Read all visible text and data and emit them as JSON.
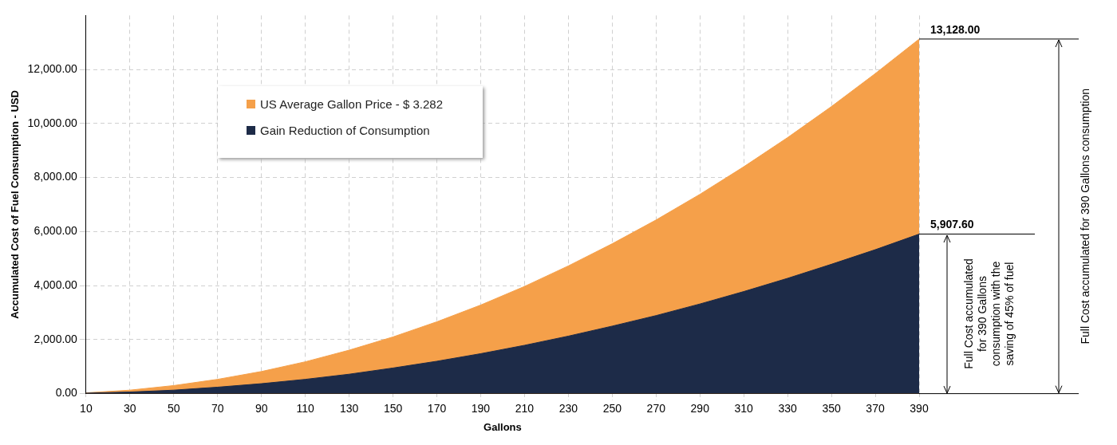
{
  "chart_data": {
    "type": "area",
    "xlabel": "Gallons",
    "ylabel": "Accumulated Cost of Fuel Consumption - USD",
    "categories": [
      "10",
      "30",
      "50",
      "70",
      "90",
      "110",
      "130",
      "150",
      "170",
      "190",
      "210",
      "230",
      "250",
      "270",
      "290",
      "310",
      "330",
      "350",
      "370",
      "390"
    ],
    "series": [
      {
        "name": "US Average Gallon Price - $ 3.282",
        "color": "#f5a04a",
        "values": [
          30,
          130,
          300,
          530,
          820,
          1180,
          1610,
          2100,
          2660,
          3280,
          3970,
          4730,
          5550,
          6430,
          7380,
          8400,
          9480,
          10630,
          11850,
          13128
        ],
        "value_labels": [
          null,
          null,
          null,
          null,
          null,
          null,
          null,
          null,
          null,
          null,
          null,
          null,
          null,
          null,
          null,
          null,
          null,
          null,
          null,
          "13,128.00"
        ]
      },
      {
        "name": "Gain Reduction of Consumption",
        "color": "#1d2b48",
        "values": [
          20,
          60,
          130,
          240,
          370,
          530,
          720,
          950,
          1200,
          1480,
          1790,
          2130,
          2500,
          2890,
          3320,
          3780,
          4270,
          4790,
          5330,
          5907.6
        ],
        "value_labels": [
          null,
          null,
          null,
          null,
          null,
          null,
          null,
          null,
          null,
          null,
          null,
          null,
          null,
          null,
          null,
          null,
          null,
          null,
          null,
          "5,907.60"
        ]
      }
    ],
    "ylim": [
      0,
      14000
    ],
    "yticks": [
      {
        "value": 0,
        "label": "0.00"
      },
      {
        "value": 2000,
        "label": "2,000.00"
      },
      {
        "value": 4000,
        "label": "4,000.00"
      },
      {
        "value": 6000,
        "label": "6,000.00"
      },
      {
        "value": 8000,
        "label": "8,000.00"
      },
      {
        "value": 10000,
        "label": "10,000.00"
      },
      {
        "value": 12000,
        "label": "12,000.00"
      }
    ],
    "grid": true,
    "legend": "top left",
    "annotations": [
      "Full Cost accumulated for 390 Gallons consumption",
      "Full Cost accumulated for 390 Gallons consumption with the saving of 45% of fuel"
    ]
  }
}
